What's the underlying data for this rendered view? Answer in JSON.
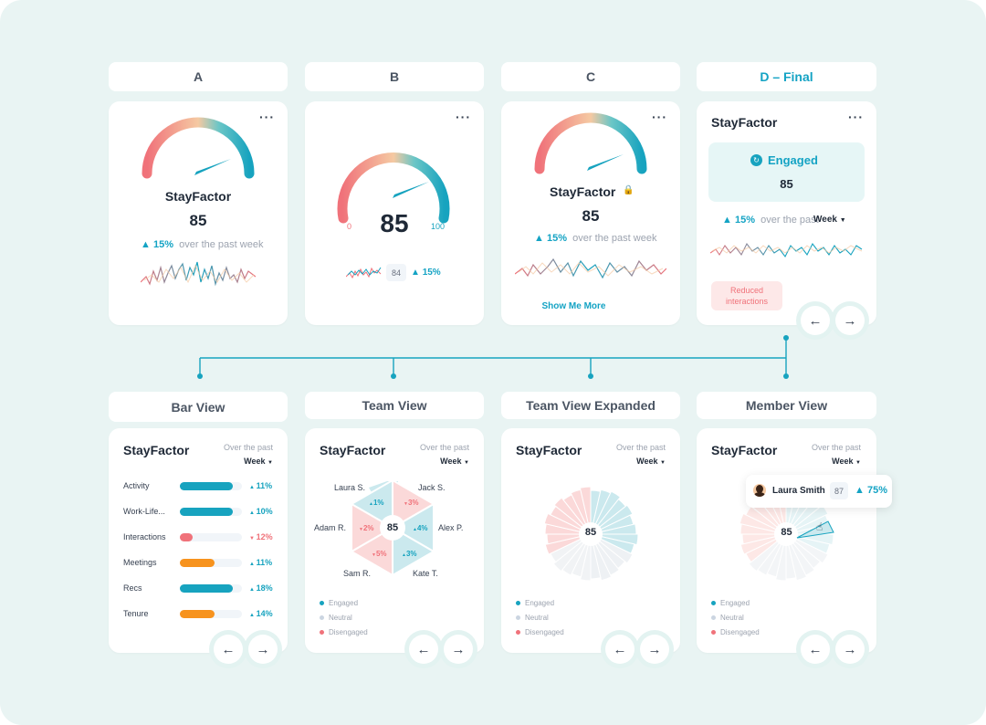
{
  "columns": {
    "a": "A",
    "b": "B",
    "c": "C",
    "d": "D – Final"
  },
  "views": {
    "bar": "Bar View",
    "team": "Team View",
    "team_expanded": "Team View Expanded",
    "member": "Member View"
  },
  "menu_dots": "···",
  "brand": "StayFactor",
  "score": "85",
  "prev_score": "84",
  "delta": "15%",
  "over_the_past_week": "over the past week",
  "over_the_past": "over the past",
  "over_the_past_cap": "Over the past",
  "period": "Week",
  "gauge_min": "0",
  "gauge_max": "100",
  "status": "Engaged",
  "show_more": "Show Me More",
  "insight_tag": "Reduced interactions",
  "nav": {
    "prev": "←",
    "next": "→"
  },
  "bar_rows": [
    {
      "label": "Activity",
      "value": "11%",
      "fraction": 0.86,
      "color": "#17a3bf",
      "up": true
    },
    {
      "label": "Work-Life...",
      "value": "10%",
      "fraction": 0.86,
      "color": "#17a3bf",
      "up": true
    },
    {
      "label": "Interactions",
      "value": "12%",
      "fraction": 0.2,
      "color": "#f0727a",
      "up": false
    },
    {
      "label": "Meetings",
      "value": "11%",
      "fraction": 0.56,
      "color": "#f7931e",
      "up": true
    },
    {
      "label": "Recs",
      "value": "18%",
      "fraction": 0.86,
      "color": "#17a3bf",
      "up": true
    },
    {
      "label": "Tenure",
      "value": "14%",
      "fraction": 0.56,
      "color": "#f7931e",
      "up": true
    }
  ],
  "team": [
    {
      "name": "Laura S.",
      "value": "1%",
      "up": true
    },
    {
      "name": "Jack S.",
      "value": "3%",
      "up": false
    },
    {
      "name": "Adam R.",
      "value": "2%",
      "up": false
    },
    {
      "name": "Alex P.",
      "value": "4%",
      "up": true
    },
    {
      "name": "Sam R.",
      "value": "5%",
      "up": false
    },
    {
      "name": "Kate T.",
      "value": "3%",
      "up": true
    }
  ],
  "legend": [
    {
      "label": "Engaged",
      "color": "#17a3bf"
    },
    {
      "label": "Neutral",
      "color": "#cbd5e1"
    },
    {
      "label": "Disengaged",
      "color": "#f0727a"
    }
  ],
  "member": {
    "name": "Laura Smith",
    "score": "87",
    "delta": "75%"
  },
  "colors": {
    "teal": "#17a3bf",
    "coral": "#f0727a",
    "orange": "#f7931e",
    "background": "#e9f4f3"
  }
}
